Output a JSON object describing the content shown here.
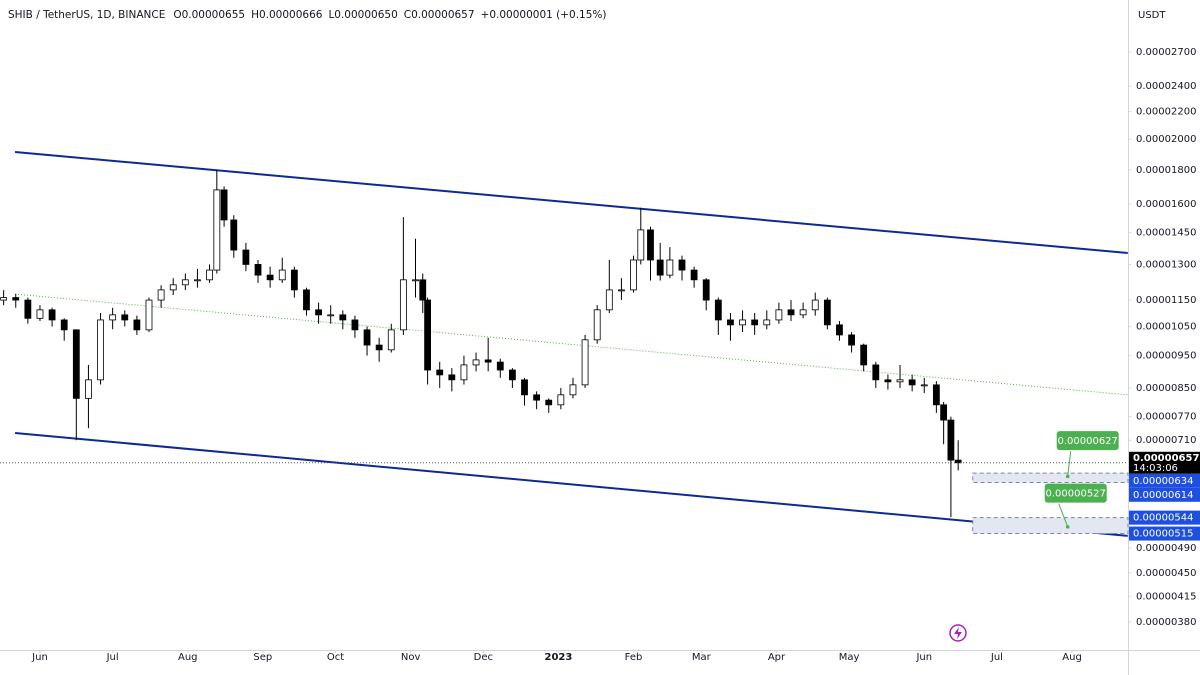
{
  "header": {
    "symbol": "SHIB / TetherUS, 1D, BINANCE",
    "open": "O0.00000655",
    "high": "H0.00000666",
    "low": "L0.00000650",
    "close": "C0.00000657",
    "change": "+0.00000001 (+0.15%)"
  },
  "chart_data": {
    "type": "candlestick",
    "currency": "USDT",
    "log_scale": true,
    "grid": false,
    "up_color": "#ffffff",
    "down_color": "#000000",
    "wick_color": "#000000",
    "xlim": [
      -16.5,
      449.1
    ],
    "xticks": [
      {
        "value": 0,
        "label": "Jun"
      },
      {
        "value": 30,
        "label": "Jul"
      },
      {
        "value": 61,
        "label": "Aug"
      },
      {
        "value": 92,
        "label": "Sep"
      },
      {
        "value": 122,
        "label": "Oct"
      },
      {
        "value": 153,
        "label": "Nov"
      },
      {
        "value": 183,
        "label": "Dec"
      },
      {
        "value": 214,
        "label": "2023"
      },
      {
        "value": 245,
        "label": "Feb"
      },
      {
        "value": 273,
        "label": "Mar"
      },
      {
        "value": 304,
        "label": "Apr"
      },
      {
        "value": 334,
        "label": "May"
      },
      {
        "value": 365,
        "label": "Jun"
      },
      {
        "value": 395,
        "label": "Jul"
      },
      {
        "value": 426,
        "label": "Aug"
      }
    ],
    "ylim": [
      3.45e-06,
      3.229e-05
    ],
    "yticks": [
      {
        "value": 2.7e-05,
        "label": "0.00002700"
      },
      {
        "value": 2.4e-05,
        "label": "0.00002400"
      },
      {
        "value": 2.2e-05,
        "label": "0.00002200"
      },
      {
        "value": 2e-05,
        "label": "0.00002000"
      },
      {
        "value": 1.8e-05,
        "label": "0.00001800"
      },
      {
        "value": 1.6e-05,
        "label": "0.00001600"
      },
      {
        "value": 1.45e-05,
        "label": "0.00001450"
      },
      {
        "value": 1.3e-05,
        "label": "0.00001300"
      },
      {
        "value": 1.15e-05,
        "label": "0.00001150"
      },
      {
        "value": 1.05e-05,
        "label": "0.00001050"
      },
      {
        "value": 9.5e-06,
        "label": "0.00000950"
      },
      {
        "value": 8.5e-06,
        "label": "0.00000850"
      },
      {
        "value": 7.7e-06,
        "label": "0.00000770"
      },
      {
        "value": 7.1e-06,
        "label": "0.00000710"
      },
      {
        "value": 4.9e-06,
        "label": "0.00000490"
      },
      {
        "value": 4.5e-06,
        "label": "0.00000450"
      },
      {
        "value": 4.15e-06,
        "label": "0.00000415"
      },
      {
        "value": 3.8e-06,
        "label": "0.00000380"
      }
    ],
    "x": [
      -15,
      -10,
      -5,
      0,
      5,
      10,
      15,
      20,
      25,
      30,
      35,
      40,
      45,
      50,
      55,
      60,
      65,
      70,
      73,
      76,
      80,
      85,
      90,
      95,
      100,
      105,
      110,
      115,
      120,
      125,
      130,
      135,
      140,
      145,
      150,
      155,
      158,
      160,
      165,
      170,
      175,
      180,
      185,
      190,
      195,
      200,
      205,
      210,
      215,
      220,
      225,
      230,
      235,
      240,
      245,
      248,
      252,
      256,
      260,
      265,
      270,
      275,
      280,
      285,
      290,
      295,
      300,
      305,
      310,
      315,
      320,
      325,
      330,
      335,
      340,
      345,
      350,
      355,
      360,
      365,
      370,
      373,
      376,
      379
    ],
    "open": [
      1.15e-05,
      1.16e-05,
      1.15e-05,
      1.08e-05,
      1.112e-05,
      1.074e-05,
      1.038e-05,
      8.2e-06,
      8.74e-06,
      1.074e-05,
      1.093e-05,
      1.074e-05,
      1.038e-05,
      1.15e-05,
      1.191e-05,
      1.212e-05,
      1.233e-05,
      1.233e-05,
      1.275e-05,
      1.68e-05,
      1.515e-05,
      1.366e-05,
      1.3e-05,
      1.253e-05,
      1.233e-05,
      1.275e-05,
      1.191e-05,
      1.112e-05,
      1.093e-05,
      1.093e-05,
      1.074e-05,
      1.038e-05,
      9.85e-06,
      9.69e-06,
      1.038e-05,
      1.233e-05,
      1.233e-05,
      1.15e-05,
      9.04e-06,
      8.89e-06,
      8.74e-06,
      9.2e-06,
      9.36e-06,
      9.29e-06,
      9.04e-06,
      8.74e-06,
      8.3e-06,
      8.15e-06,
      8.02e-06,
      8.3e-06,
      8.59e-06,
      1.003e-05,
      1.112e-05,
      1.191e-05,
      1.191e-05,
      1.32e-05,
      1.464e-05,
      1.32e-05,
      1.253e-05,
      1.32e-05,
      1.275e-05,
      1.233e-05,
      1.15e-05,
      1.074e-05,
      1.056e-05,
      1.074e-05,
      1.056e-05,
      1.074e-05,
      1.112e-05,
      1.093e-05,
      1.112e-05,
      1.15e-05,
      1.056e-05,
      1.02e-05,
      9.85e-06,
      9.2e-06,
      8.74e-06,
      8.68e-06,
      8.74e-06,
      8.59e-06,
      8.59e-06,
      8.02e-06,
      7.61e-06,
      6.63e-06
    ],
    "high": [
      1.19e-05,
      1.175e-05,
      1.16e-05,
      1.13e-05,
      1.12e-05,
      1.08e-05,
      1.04e-05,
      9.2e-06,
      1.1e-05,
      1.12e-05,
      1.11e-05,
      1.09e-05,
      1.16e-05,
      1.21e-05,
      1.24e-05,
      1.26e-05,
      1.28e-05,
      1.3e-05,
      1.8e-05,
      1.7e-05,
      1.54e-05,
      1.4e-05,
      1.32e-05,
      1.29e-05,
      1.33e-05,
      1.29e-05,
      1.2e-05,
      1.14e-05,
      1.13e-05,
      1.11e-05,
      1.09e-05,
      1.05e-05,
      1.01e-05,
      1.06e-05,
      1.53e-05,
      1.42e-05,
      1.26e-05,
      1.16e-05,
      9.3e-06,
      9.1e-06,
      9.5e-06,
      9.6e-06,
      1.01e-05,
      9.4e-06,
      9.1e-06,
      8.8e-06,
      8.4e-06,
      8.2e-06,
      8.5e-06,
      8.8e-06,
      1.02e-05,
      1.13e-05,
      1.32e-05,
      1.24e-05,
      1.34e-05,
      1.58e-05,
      1.48e-05,
      1.4e-05,
      1.38e-05,
      1.34e-05,
      1.29e-05,
      1.24e-05,
      1.16e-05,
      1.1e-05,
      1.11e-05,
      1.1e-05,
      1.11e-05,
      1.14e-05,
      1.15e-05,
      1.14e-05,
      1.18e-05,
      1.16e-05,
      1.07e-05,
      1.03e-05,
      9.9e-06,
      9.3e-06,
      8.9e-06,
      9.2e-06,
      8.9e-06,
      8.8e-06,
      8.7e-06,
      8.1e-06,
      7.7e-06,
      7.1e-06
    ],
    "low": [
      1.13e-05,
      1.12e-05,
      1.06e-05,
      1.07e-05,
      1.05e-05,
      1e-05,
      7.1e-06,
      7.4e-06,
      8.6e-06,
      1.04e-05,
      1.05e-05,
      1.02e-05,
      1.03e-05,
      1.12e-05,
      1.17e-05,
      1.19e-05,
      1.2e-05,
      1.22e-05,
      1.26e-05,
      1.48e-05,
      1.33e-05,
      1.27e-05,
      1.22e-05,
      1.2e-05,
      1.22e-05,
      1.16e-05,
      1.09e-05,
      1.06e-05,
      1.06e-05,
      1.04e-05,
      1.01e-05,
      9.5e-06,
      9.3e-06,
      9.6e-06,
      1.02e-05,
      1.16e-05,
      1.1e-05,
      8.6e-06,
      8.5e-06,
      8.4e-06,
      8.6e-06,
      9e-06,
      9e-06,
      8.8e-06,
      8.5e-06,
      8e-06,
      7.9e-06,
      7.8e-06,
      7.9e-06,
      8.2e-06,
      8.5e-06,
      9.9e-06,
      1.1e-05,
      1.15e-05,
      1.18e-05,
      1.3e-05,
      1.23e-05,
      1.23e-05,
      1.24e-05,
      1.23e-05,
      1.2e-05,
      1.11e-05,
      1.02e-05,
      1e-05,
      1.03e-05,
      1.02e-05,
      1.04e-05,
      1.06e-05,
      1.07e-05,
      1.08e-05,
      1.09e-05,
      1.04e-05,
      1e-05,
      9.6e-06,
      9e-06,
      8.5e-06,
      8.45e-06,
      8.5e-06,
      8.4e-06,
      8.35e-06,
      7.8e-06,
      7e-06,
      5.45e-06,
      6.4e-06
    ],
    "close": [
      1.16e-05,
      1.15e-05,
      1.08e-05,
      1.112e-05,
      1.074e-05,
      1.038e-05,
      8.2e-06,
      8.74e-06,
      1.074e-05,
      1.093e-05,
      1.074e-05,
      1.038e-05,
      1.15e-05,
      1.191e-05,
      1.212e-05,
      1.233e-05,
      1.233e-05,
      1.275e-05,
      1.68e-05,
      1.515e-05,
      1.366e-05,
      1.3e-05,
      1.253e-05,
      1.233e-05,
      1.275e-05,
      1.191e-05,
      1.112e-05,
      1.093e-05,
      1.093e-05,
      1.074e-05,
      1.038e-05,
      9.85e-06,
      9.69e-06,
      1.038e-05,
      1.233e-05,
      1.233e-05,
      1.15e-05,
      9.04e-06,
      8.89e-06,
      8.74e-06,
      9.2e-06,
      9.36e-06,
      9.29e-06,
      9.04e-06,
      8.74e-06,
      8.3e-06,
      8.15e-06,
      8.02e-06,
      8.3e-06,
      8.59e-06,
      1.003e-05,
      1.112e-05,
      1.191e-05,
      1.191e-05,
      1.32e-05,
      1.464e-05,
      1.32e-05,
      1.253e-05,
      1.32e-05,
      1.275e-05,
      1.233e-05,
      1.15e-05,
      1.074e-05,
      1.056e-05,
      1.074e-05,
      1.056e-05,
      1.074e-05,
      1.112e-05,
      1.093e-05,
      1.112e-05,
      1.15e-05,
      1.056e-05,
      1.02e-05,
      9.85e-06,
      9.2e-06,
      8.74e-06,
      8.68e-06,
      8.74e-06,
      8.59e-06,
      8.59e-06,
      8.02e-06,
      7.61e-06,
      6.63e-06,
      6.57e-06
    ],
    "trendlines": [
      {
        "x": [
          -10.3,
          449
        ],
        "y": [
          1.914e-05,
          1.352e-05
        ],
        "color": "#0d2a94",
        "style": "solid"
      },
      {
        "x": [
          -10.3,
          449
        ],
        "y": [
          7.28e-06,
          5.11e-06
        ],
        "color": "#0d2a94",
        "style": "solid"
      },
      {
        "x": [
          -10.3,
          449
        ],
        "y": [
          1.174e-05,
          8.3e-06
        ],
        "color": "#4caf50",
        "style": "dotted"
      }
    ],
    "last_price": {
      "value": 6.57e-06,
      "label": "0.00000657",
      "countdown": "14:03:06",
      "color": "#000000"
    },
    "zones": [
      {
        "x0": 385,
        "range": [
          {
            "value": 6.14e-06,
            "label": "0.00000614"
          },
          {
            "value": 6.34e-06,
            "label": "0.00000634"
          }
        ],
        "target": {
          "value": 6.27e-06,
          "label": "0.00000627"
        },
        "tag_color": "#1e4fe0",
        "target_color": "#4caf50"
      },
      {
        "x0": 385,
        "range": [
          {
            "value": 5.15e-06,
            "label": "0.00000515"
          },
          {
            "value": 5.44e-06,
            "label": "0.00000544"
          }
        ],
        "target": {
          "value": 5.27e-06,
          "label": "0.00000527"
        },
        "tag_color": "#1e4fe0",
        "target_color": "#4caf50"
      }
    ]
  }
}
